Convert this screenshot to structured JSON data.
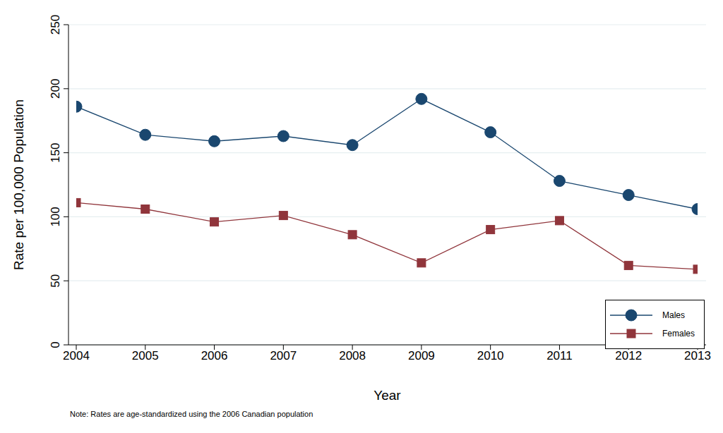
{
  "chart_data": {
    "type": "line",
    "x_label": "Year",
    "y_label": "Rate per 100,000 Population",
    "note": "Note: Rates are age-standardized using the 2006 Canadian population",
    "x": [
      2004,
      2005,
      2006,
      2007,
      2008,
      2009,
      2010,
      2011,
      2012,
      2013
    ],
    "xlim": [
      2004,
      2013
    ],
    "xticks": [
      2004,
      2005,
      2006,
      2007,
      2008,
      2009,
      2010,
      2011,
      2012,
      2013
    ],
    "ylim": [
      0,
      250
    ],
    "yticks": [
      0,
      50,
      100,
      150,
      200,
      250
    ],
    "grid": true,
    "legend": "lower right",
    "series": [
      {
        "name": "Males",
        "color": "#1a476f",
        "marker": "circle",
        "values": [
          186,
          164,
          159,
          163,
          156,
          192,
          166,
          128,
          117,
          106
        ]
      },
      {
        "name": "Females",
        "color": "#90353b",
        "marker": "square",
        "values": [
          111,
          106,
          96,
          101,
          86,
          64,
          90,
          97,
          62,
          59
        ]
      }
    ]
  }
}
